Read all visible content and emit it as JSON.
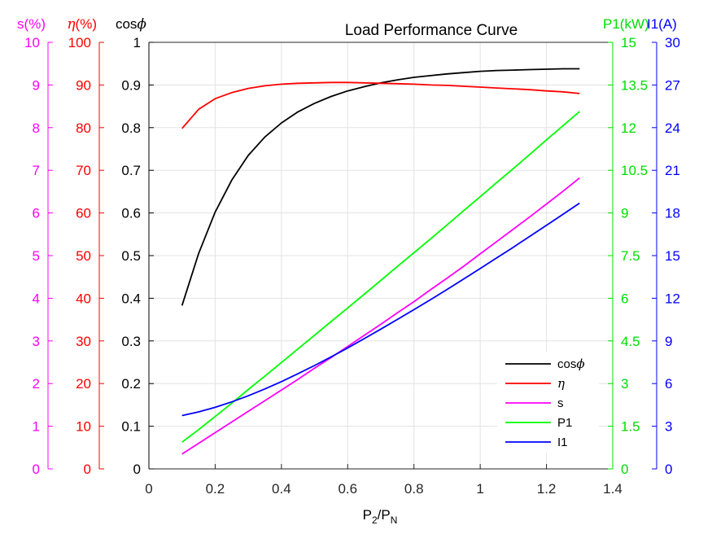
{
  "chart_data": {
    "type": "line",
    "title": "Load Performance Curve",
    "xlabel": {
      "base": "P",
      "sub1": "2",
      "mid": "/P",
      "sub2": "N"
    },
    "x": [
      0.1,
      0.15,
      0.2,
      0.25,
      0.3,
      0.35,
      0.4,
      0.45,
      0.5,
      0.55,
      0.6,
      0.65,
      0.7,
      0.75,
      0.8,
      0.85,
      0.9,
      0.95,
      1.0,
      1.05,
      1.1,
      1.15,
      1.2,
      1.25,
      1.3
    ],
    "xlim": [
      0,
      1.4
    ],
    "xticks": [
      "0",
      "0.2",
      "0.4",
      "0.6",
      "0.8",
      "1",
      "1.2",
      "1.4"
    ],
    "grid": true,
    "legend_position": "bottom-right",
    "axes": [
      {
        "id": "s",
        "side": "left",
        "label": "s(%)",
        "color": "#ff00ff",
        "lim": [
          0,
          10
        ],
        "ticks": [
          "0",
          "1",
          "2",
          "3",
          "4",
          "5",
          "6",
          "7",
          "8",
          "9",
          "10"
        ]
      },
      {
        "id": "eta",
        "side": "left",
        "label_sym": "η",
        "label_rest": "(%)",
        "color": "#ff0000",
        "lim": [
          0,
          100
        ],
        "ticks": [
          "0",
          "10",
          "20",
          "30",
          "40",
          "50",
          "60",
          "70",
          "80",
          "90",
          "100"
        ]
      },
      {
        "id": "cos",
        "side": "left",
        "label_prefix": "cos",
        "label_sym": "ϕ",
        "color": "#000000",
        "lim": [
          0,
          1
        ],
        "ticks": [
          "0",
          "0.1",
          "0.2",
          "0.3",
          "0.4",
          "0.5",
          "0.6",
          "0.7",
          "0.8",
          "0.9",
          "1"
        ]
      },
      {
        "id": "p1",
        "side": "right",
        "label": "P1(kW)",
        "color": "#00dd00",
        "lim": [
          0,
          15
        ],
        "ticks": [
          "0",
          "1.5",
          "3",
          "4.5",
          "6",
          "7.5",
          "9",
          "10.5",
          "12",
          "13.5",
          "15"
        ]
      },
      {
        "id": "i1",
        "side": "right",
        "label": "I1(A)",
        "color": "#0000ff",
        "lim": [
          0,
          30
        ],
        "ticks": [
          "0",
          "3",
          "6",
          "9",
          "12",
          "15",
          "18",
          "21",
          "24",
          "27",
          "30"
        ]
      }
    ],
    "series": [
      {
        "name": "cosϕ",
        "name_prefix": "cos",
        "name_sym": "ϕ",
        "axis": "cos",
        "color": "#000000",
        "values": [
          0.383,
          0.505,
          0.602,
          0.677,
          0.735,
          0.778,
          0.811,
          0.837,
          0.857,
          0.873,
          0.886,
          0.896,
          0.905,
          0.912,
          0.918,
          0.922,
          0.926,
          0.929,
          0.932,
          0.934,
          0.935,
          0.936,
          0.937,
          0.938,
          0.938
        ]
      },
      {
        "name": "η",
        "name_sym": "η",
        "axis": "eta",
        "color": "#ff0000",
        "values": [
          79.8,
          84.3,
          86.8,
          88.2,
          89.2,
          89.8,
          90.2,
          90.4,
          90.5,
          90.6,
          90.6,
          90.5,
          90.4,
          90.3,
          90.2,
          90.0,
          89.9,
          89.7,
          89.5,
          89.3,
          89.1,
          88.9,
          88.6,
          88.4,
          88.0
        ]
      },
      {
        "name": "s",
        "axis": "s",
        "color": "#ff00ff",
        "values": [
          0.35,
          0.6,
          0.85,
          1.1,
          1.35,
          1.6,
          1.85,
          2.1,
          2.36,
          2.61,
          2.87,
          3.13,
          3.39,
          3.66,
          3.92,
          4.2,
          4.47,
          4.75,
          5.04,
          5.33,
          5.62,
          5.91,
          6.21,
          6.51,
          6.82
        ]
      },
      {
        "name": "P1",
        "axis": "p1",
        "color": "#00ff00",
        "values": [
          0.94,
          1.38,
          1.84,
          2.31,
          2.79,
          3.26,
          3.74,
          4.22,
          4.7,
          5.18,
          5.66,
          6.14,
          6.63,
          7.12,
          7.6,
          8.09,
          8.58,
          9.08,
          9.57,
          10.07,
          10.56,
          11.06,
          11.57,
          12.07,
          12.57
        ]
      },
      {
        "name": "I1",
        "axis": "i1",
        "color": "#0000ff",
        "values": [
          3.75,
          4.01,
          4.33,
          4.71,
          5.14,
          5.62,
          6.14,
          6.69,
          7.27,
          7.88,
          8.51,
          9.16,
          9.83,
          10.51,
          11.2,
          11.9,
          12.62,
          13.35,
          14.09,
          14.84,
          15.59,
          16.36,
          17.13,
          17.91,
          18.69
        ]
      }
    ]
  }
}
